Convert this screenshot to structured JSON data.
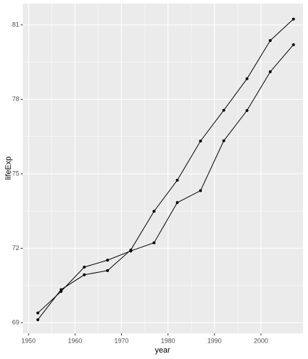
{
  "chart_data": {
    "type": "line",
    "x_label": "year",
    "y_label": "lifeExp",
    "x": [
      1952,
      1957,
      1962,
      1967,
      1972,
      1977,
      1982,
      1987,
      1992,
      1997,
      2002,
      2007
    ],
    "series": [
      {
        "color": "#000000",
        "values": [
          69.12,
          70.33,
          70.93,
          71.1,
          71.93,
          73.49,
          74.74,
          76.32,
          77.56,
          78.83,
          80.37,
          81.235
        ]
      },
      {
        "color": "#000000",
        "values": [
          69.39,
          70.26,
          71.24,
          71.52,
          71.89,
          72.22,
          73.84,
          74.32,
          76.33,
          77.55,
          79.11,
          80.204
        ]
      }
    ],
    "xlim": [
      1948.77,
      2009.05
    ],
    "xticks": [
      1950,
      1960,
      1970,
      1980,
      1990,
      2000
    ],
    "ylim": [
      68.57,
      81.86
    ],
    "yticks": [
      69,
      72,
      75,
      78,
      81
    ],
    "grid": true,
    "minor_grid": true,
    "markers": true
  }
}
